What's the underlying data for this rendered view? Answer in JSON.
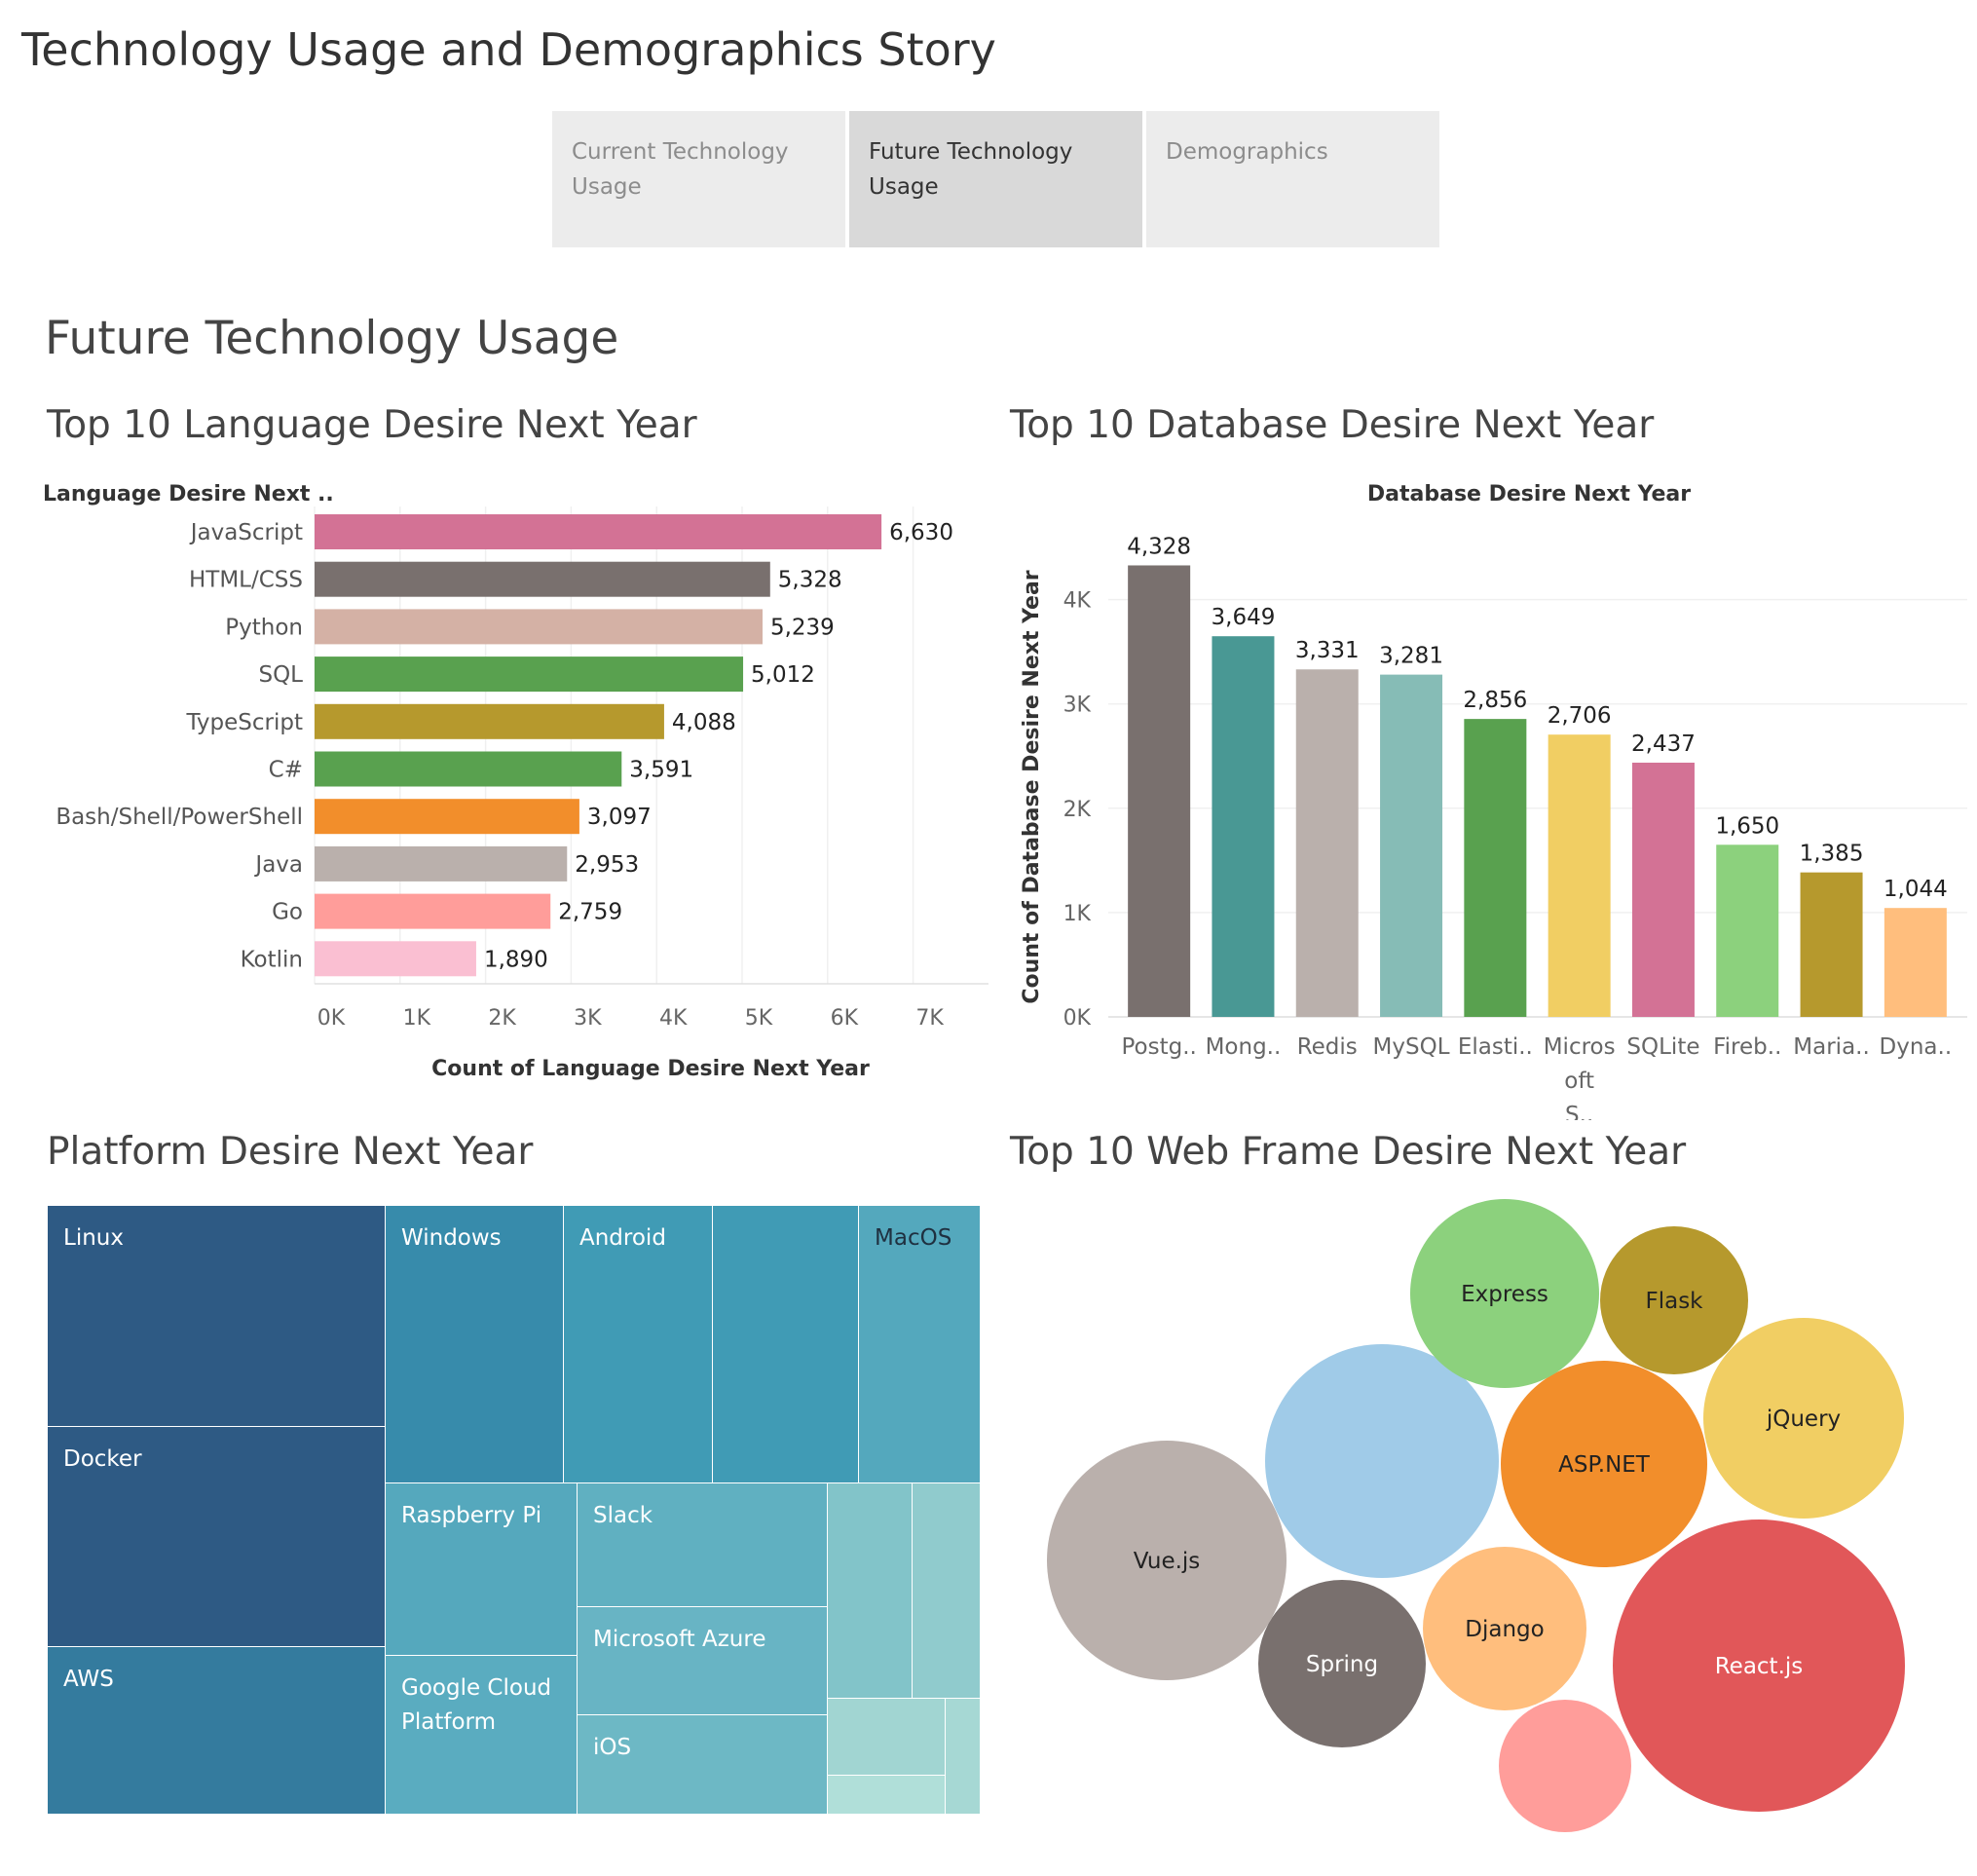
{
  "story": {
    "title": "Technology Usage and Demographics Story",
    "tabs": [
      {
        "label": "Current Technology Usage",
        "active": false
      },
      {
        "label": "Future Technology Usage",
        "active": true
      },
      {
        "label": "Demographics",
        "active": false
      }
    ]
  },
  "dashboard": {
    "title": "Future Technology Usage"
  },
  "language_chart": {
    "title": "Top 10 Language Desire Next Year",
    "row_header": "Language Desire Next ..",
    "xlabel": "Count of Language Desire Next Year",
    "tick_labels": [
      "0K",
      "1K",
      "2K",
      "3K",
      "4K",
      "5K",
      "6K",
      "7K"
    ]
  },
  "database_chart": {
    "title": "Top 10 Database Desire Next Year",
    "column_header": "Database Desire Next Year",
    "ylabel": "Count of Database Desire Next Year",
    "tick_labels": [
      "0K",
      "1K",
      "2K",
      "3K",
      "4K"
    ]
  },
  "platform_chart": {
    "title": "Platform Desire Next Year"
  },
  "webframe_chart": {
    "title": "Top 10 Web Frame Desire Next Year"
  },
  "chart_data": [
    {
      "type": "bar",
      "orientation": "horizontal",
      "title": "Top 10 Language Desire Next Year",
      "xlabel": "Count of Language Desire Next Year",
      "ylabel": "Language Desire Next ..",
      "categories": [
        "JavaScript",
        "HTML/CSS",
        "Python",
        "SQL",
        "TypeScript",
        "C#",
        "Bash/Shell/PowerShell",
        "Java",
        "Go",
        "Kotlin"
      ],
      "values": [
        6630,
        5328,
        5239,
        5012,
        4088,
        3591,
        3097,
        2953,
        2759,
        1890
      ],
      "value_labels": [
        "6,630",
        "5,328",
        "5,239",
        "5,012",
        "4,088",
        "3,591",
        "3,097",
        "2,953",
        "2,759",
        "1,890"
      ],
      "colors": [
        "#d37295",
        "#79706e",
        "#d4b1a5",
        "#59a14f",
        "#b6992d",
        "#59a14f",
        "#f28e2b",
        "#bab0ac",
        "#ff9d9a",
        "#fabfd2"
      ],
      "xlim": [
        0,
        7900
      ],
      "grid": true
    },
    {
      "type": "bar",
      "orientation": "vertical",
      "title": "Top 10 Database Desire Next Year",
      "xlabel": "Database Desire Next Year",
      "ylabel": "Count of Database Desire Next Year",
      "categories": [
        "Postg..",
        "Mong..",
        "Redis",
        "MySQL",
        "Elasti..",
        "Micros oft S..",
        "SQLite",
        "Fireb..",
        "Maria..",
        "Dyna.."
      ],
      "values": [
        4328,
        3649,
        3331,
        3281,
        2856,
        2706,
        2437,
        1650,
        1385,
        1044
      ],
      "value_labels": [
        "4,328",
        "3,649",
        "3,331",
        "3,281",
        "2,856",
        "2,706",
        "2,437",
        "1,650",
        "1,385",
        "1,044"
      ],
      "colors": [
        "#79706e",
        "#499894",
        "#bab0ac",
        "#86bcb6",
        "#59a14f",
        "#f1ce63",
        "#d37295",
        "#8cd17d",
        "#b6992d",
        "#ffbe7d"
      ],
      "ylim": [
        0,
        4600
      ],
      "grid": true
    },
    {
      "type": "treemap",
      "title": "Platform Desire Next Year",
      "items": [
        {
          "label": "Linux",
          "color": "#2e5a84"
        },
        {
          "label": "Docker",
          "color": "#2e5a84"
        },
        {
          "label": "AWS",
          "color": "#347b9e"
        },
        {
          "label": "Windows",
          "color": "#378bab"
        },
        {
          "label": "Android",
          "color": "#409bb5"
        },
        {
          "label": "",
          "color": "#409bb5"
        },
        {
          "label": "MacOS",
          "color": "#54a8bd"
        },
        {
          "label": "Raspberry Pi",
          "color": "#55a8bd"
        },
        {
          "label": "Slack",
          "color": "#60b0c1"
        },
        {
          "label": "Microsoft Azure",
          "color": "#68b4c4"
        },
        {
          "label": "Google Cloud Platform",
          "color": "#5aacc0"
        },
        {
          "label": "iOS",
          "color": "#6db8c5"
        },
        {
          "label": "",
          "color": "#82c4c9"
        },
        {
          "label": "",
          "color": "#90cbcd"
        },
        {
          "label": "",
          "color": "#a1d5d2"
        },
        {
          "label": "",
          "color": "#a6d8d4"
        },
        {
          "label": "",
          "color": "#b0dfd9"
        }
      ]
    },
    {
      "type": "bubble",
      "title": "Top 10 Web Frame Desire Next Year",
      "items": [
        {
          "label": "React.js",
          "color": "#e15759"
        },
        {
          "label": "Vue.js",
          "color": "#bab0ac"
        },
        {
          "label": "",
          "color": "#a0cbe8"
        },
        {
          "label": "ASP.NET",
          "color": "#f28e2b"
        },
        {
          "label": "jQuery",
          "color": "#f1ce63"
        },
        {
          "label": "Express",
          "color": "#8cd17d"
        },
        {
          "label": "Spring",
          "color": "#79706e"
        },
        {
          "label": "Django",
          "color": "#ffbe7d"
        },
        {
          "label": "Flask",
          "color": "#b6992d"
        },
        {
          "label": "",
          "color": "#ff9d9a"
        }
      ]
    }
  ]
}
